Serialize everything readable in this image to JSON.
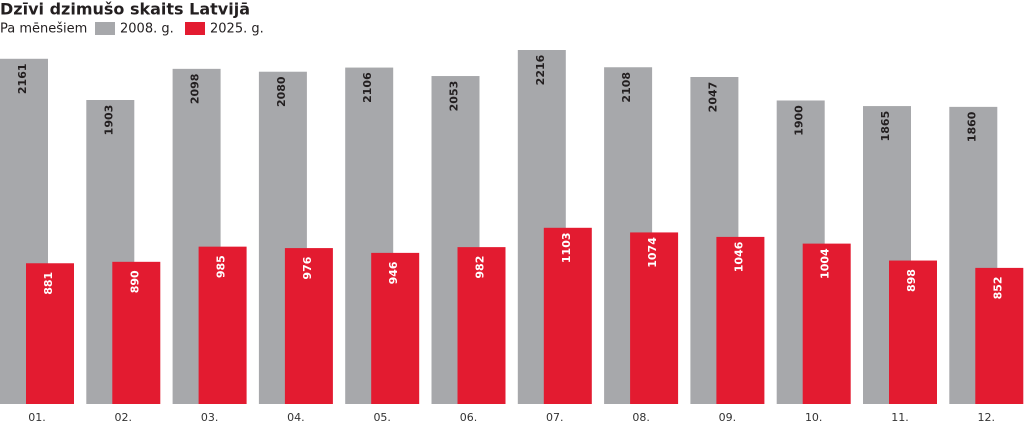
{
  "chart_data": {
    "type": "bar",
    "title": "Dzīvi dzimušo skaits Latvijā",
    "subtitle": "Pa mēnešiem",
    "categories": [
      "01.",
      "02.",
      "03.",
      "04.",
      "05.",
      "06.",
      "07.",
      "08.",
      "09.",
      "10.",
      "11.",
      "12."
    ],
    "series": [
      {
        "name": "2008. g.",
        "color": "#a7a8ab",
        "label_color": "#231f20",
        "values": [
          2161,
          1903,
          2098,
          2080,
          2106,
          2053,
          2216,
          2108,
          2047,
          1900,
          1865,
          1860
        ]
      },
      {
        "name": "2025. g.",
        "color": "#e31b30",
        "label_color": "#ffffff",
        "values": [
          881,
          890,
          985,
          976,
          946,
          982,
          1103,
          1074,
          1046,
          1004,
          898,
          852
        ]
      }
    ]
  }
}
